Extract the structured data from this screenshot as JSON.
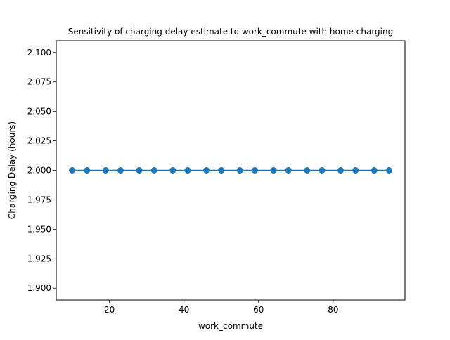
{
  "chart_data": {
    "type": "line",
    "title": "Sensitivity of charging delay estimate to work_commute with home charging",
    "xlabel": "work_commute",
    "ylabel": "Charging Delay (hours)",
    "xlim": [
      5.75,
      99.25
    ],
    "ylim": [
      1.89,
      2.11
    ],
    "x_ticks": [
      20,
      40,
      60,
      80
    ],
    "x_tick_labels": [
      "20",
      "40",
      "60",
      "80"
    ],
    "y_ticks": [
      1.9,
      1.925,
      1.95,
      1.975,
      2.0,
      2.025,
      2.05,
      2.075,
      2.1
    ],
    "y_tick_labels": [
      "1.900",
      "1.925",
      "1.950",
      "1.975",
      "2.000",
      "2.025",
      "2.050",
      "2.075",
      "2.100"
    ],
    "grid": false,
    "legend": "none",
    "series": [
      {
        "color": "#1f77b4",
        "marker": "circle",
        "x": [
          10,
          14,
          19,
          23,
          28,
          32,
          37,
          41,
          46,
          50,
          55,
          59,
          64,
          68,
          73,
          77,
          82,
          86,
          91,
          95
        ],
        "y": [
          2.0,
          2.0,
          2.0,
          2.0,
          2.0,
          2.0,
          2.0,
          2.0,
          2.0,
          2.0,
          2.0,
          2.0,
          2.0,
          2.0,
          2.0,
          2.0,
          2.0,
          2.0,
          2.0,
          2.0
        ]
      }
    ]
  }
}
